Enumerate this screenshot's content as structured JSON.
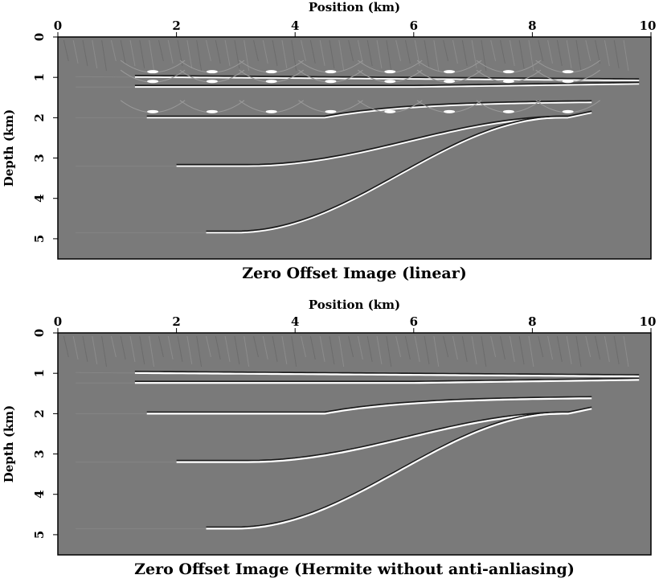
{
  "panels": [
    {
      "title": "Zero Offset Image (linear)",
      "xlabel": "Position (km)",
      "ylabel": "Depth (km)",
      "x_ticks": [
        "0",
        "2",
        "4",
        "6",
        "8",
        "10"
      ],
      "y_ticks": [
        "0",
        "1",
        "2",
        "3",
        "4",
        "5"
      ],
      "x_range": [
        0,
        10
      ],
      "y_range": [
        0,
        5.5
      ],
      "background": "#7a7a7a"
    },
    {
      "title": "Zero Offset Image (Hermite without anti-anliasing)",
      "xlabel": "Position (km)",
      "ylabel": "Depth (km)",
      "x_ticks": [
        "0",
        "2",
        "4",
        "6",
        "8",
        "10"
      ],
      "y_ticks": [
        "0",
        "1",
        "2",
        "3",
        "4",
        "5"
      ],
      "x_range": [
        0,
        10
      ],
      "y_range": [
        0,
        5.5
      ],
      "background": "#7a7a7a"
    }
  ],
  "colors": {
    "reflector_bright": "#ffffff",
    "reflector_dark": "#111111",
    "frame": "#000000"
  }
}
